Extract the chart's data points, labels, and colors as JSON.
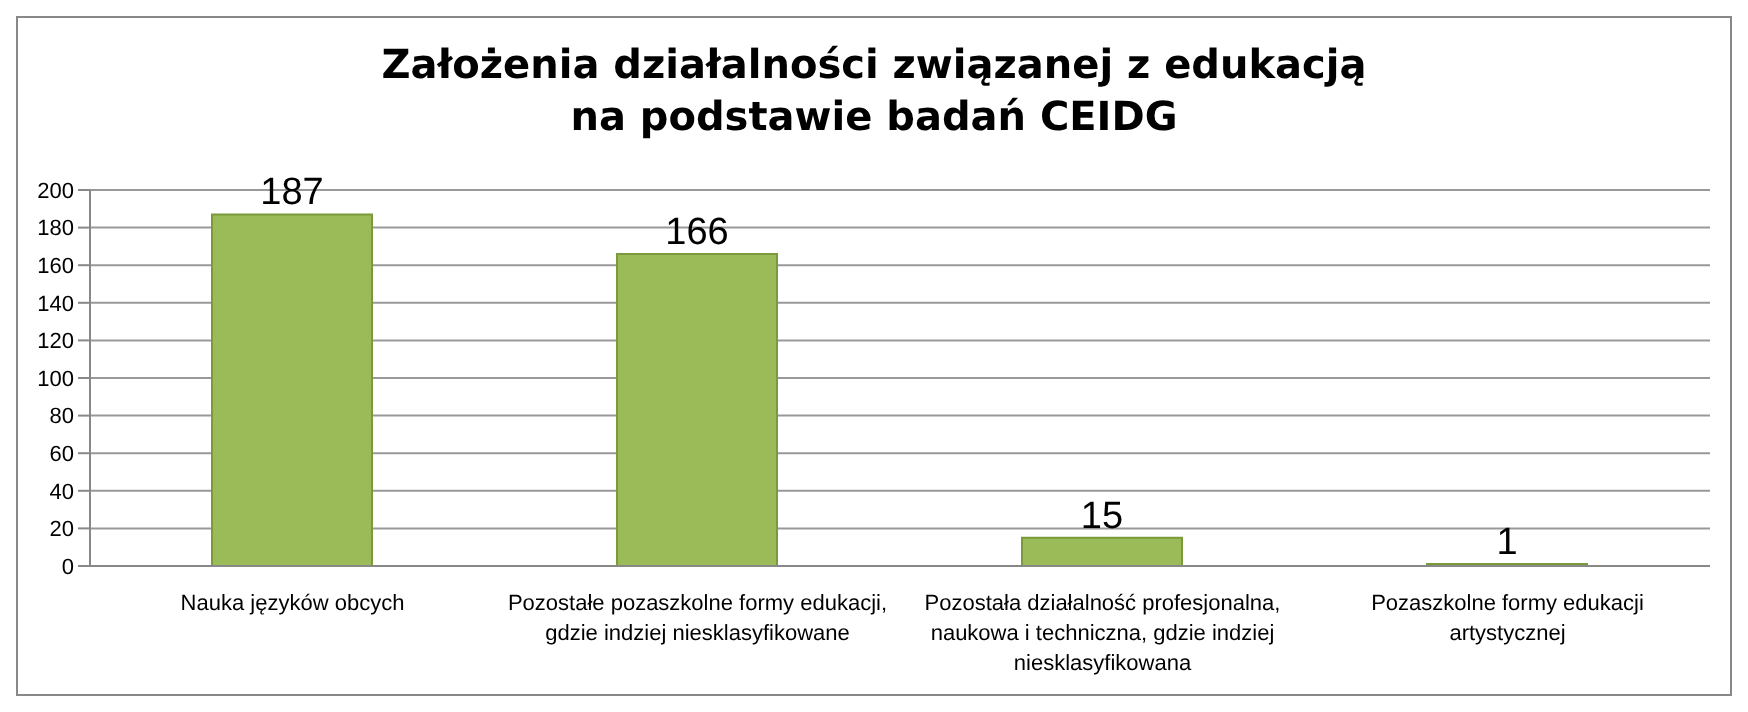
{
  "chart_data": {
    "type": "bar",
    "title": "Założenia działalności związanej z edukacją\nna podstawie badań CEIDG",
    "categories": [
      "Nauka języków obcych",
      "Pozostałe pozaszkolne formy edukacji, gdzie indziej niesklasyfikowane",
      "Pozostała działalność profesjonalna, naukowa i techniczna, gdzie indziej niesklasyfikowana",
      "Pozaszkolne formy edukacji artystycznej"
    ],
    "values": [
      187,
      166,
      15,
      1
    ],
    "color": "#9bbb59",
    "ylim": [
      0,
      200
    ],
    "yticks": [
      0,
      20,
      40,
      60,
      80,
      100,
      120,
      140,
      160,
      180,
      200
    ],
    "grid": "y",
    "data_labels": true,
    "legend": false
  }
}
